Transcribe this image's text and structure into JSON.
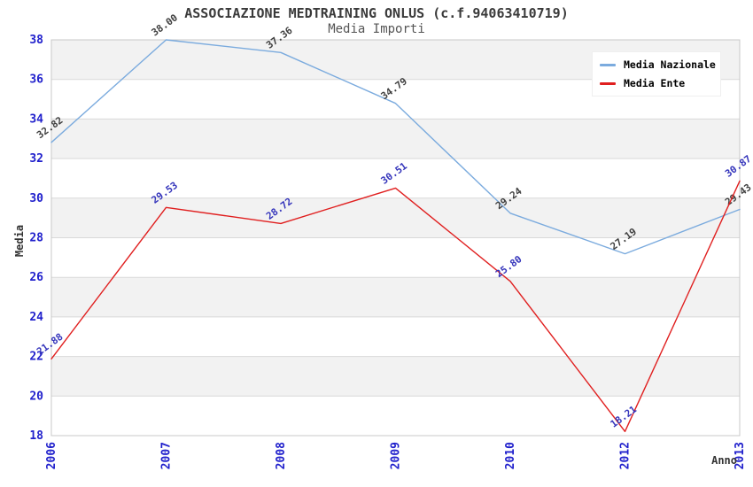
{
  "chart_data": {
    "type": "line",
    "title": "ASSOCIAZIONE MEDTRAINING ONLUS (c.f.94063410719)",
    "subtitle": "Media Importi",
    "xlabel": "Anno",
    "ylabel": "Media",
    "categories": [
      "2006",
      "2007",
      "2008",
      "2009",
      "2010",
      "2012",
      "2013"
    ],
    "series": [
      {
        "name": "Media Nazionale",
        "color": "#7BABDE",
        "label_color": "#3F3F3F",
        "values": [
          32.82,
          38.0,
          37.36,
          34.79,
          29.24,
          27.19,
          29.43
        ]
      },
      {
        "name": "Media Ente",
        "color": "#E01F1F",
        "label_color": "#3434BB",
        "values": [
          21.88,
          29.53,
          28.72,
          30.51,
          25.8,
          18.21,
          30.87
        ]
      }
    ],
    "ylim": [
      18,
      38
    ],
    "ytick_step": 2,
    "grid": true,
    "legend_position": "top-right",
    "colors": {
      "tick_labels": "#2020CC",
      "band_fill": "#F2F2F2",
      "gridline": "#D9D9D9",
      "plot_border": "#C8C8C8",
      "title": "#3A3A3A",
      "subtitle": "#555555",
      "axis_label": "#333333"
    }
  }
}
